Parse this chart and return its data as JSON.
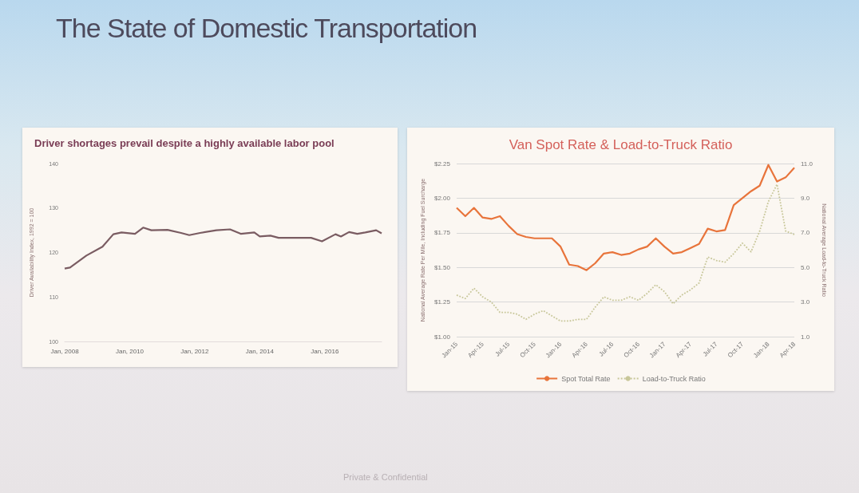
{
  "chart_data": [
    {
      "type": "line",
      "title": "The State of Domestic Transportation",
      "subtitle": "Driver shortages prevail despite a highly available labor pool",
      "ylabel": "Driver Availability Index, 1992 = 100",
      "annotations": [
        "Private & Confidential"
      ],
      "marker": "none",
      "grid": false,
      "x": [
        "2008-01",
        "2008-03",
        "2008-09",
        "2009-03",
        "2009-07",
        "2009-10",
        "2010-03",
        "2010-06",
        "2010-09",
        "2011-03",
        "2011-08",
        "2011-11",
        "2012-03",
        "2012-09",
        "2013-02",
        "2013-06",
        "2013-11",
        "2014-01",
        "2014-05",
        "2014-08",
        "2015-02",
        "2015-08",
        "2015-12",
        "2016-05",
        "2016-07",
        "2016-10",
        "2017-01",
        "2017-04",
        "2017-08",
        "2017-10"
      ],
      "series": [
        {
          "color": "#7a5c62",
          "values": [
            116.4,
            116.6,
            119.3,
            121.3,
            124.1,
            124.5,
            124.2,
            125.6,
            125,
            125.1,
            124.4,
            123.9,
            124.4,
            125,
            125.2,
            124.2,
            124.5,
            123.6,
            123.8,
            123.3,
            123.3,
            123.3,
            122.5,
            124.1,
            123.6,
            124.6,
            124.2,
            124.5,
            125,
            124.3
          ]
        }
      ],
      "xlim": [
        "2008-01",
        "2017-10"
      ],
      "xticks": [
        {
          "value": "2008-01",
          "label": "Jan, 2008"
        },
        {
          "value": "2010-01",
          "label": "Jan, 2010"
        },
        {
          "value": "2012-01",
          "label": "Jan, 2012"
        },
        {
          "value": "2014-01",
          "label": "Jan, 2014"
        },
        {
          "value": "2016-01",
          "label": "Jan, 2016"
        }
      ],
      "ylim": [
        100,
        140
      ],
      "yticks": [
        100,
        110,
        120,
        130,
        140
      ]
    },
    {
      "type": "line",
      "title": "Van Spot Rate & Load-to-Truck Ratio",
      "ylabel": "National Average Rate Per Mile, Including Fuel Surcharge",
      "y2label": "National Average Load-to-Truck Ratio",
      "marker": "none",
      "grid": "y",
      "legend": "bottom",
      "categories": [
        "Jan-15",
        null,
        null,
        "Apr-15",
        null,
        null,
        "Jul-15",
        null,
        null,
        "Oct-15",
        null,
        null,
        "Jan-16",
        null,
        null,
        "Apr-16",
        null,
        null,
        "Jul-16",
        null,
        null,
        "Oct-16",
        null,
        null,
        "Jan-17",
        null,
        null,
        "Apr-17",
        null,
        null,
        "Jul-17",
        null,
        null,
        "Oct-17",
        null,
        null,
        "Jan-18",
        null,
        null,
        "Apr-18"
      ],
      "series": [
        {
          "name": "Spot Total Rate",
          "color": "#e8743b",
          "line_style": "solid",
          "values": [
            1.93,
            1.87,
            1.93,
            1.86,
            1.85,
            1.87,
            1.8,
            1.74,
            1.72,
            1.71,
            1.71,
            1.71,
            1.65,
            1.52,
            1.51,
            1.48,
            1.53,
            1.6,
            1.61,
            1.59,
            1.6,
            1.63,
            1.65,
            1.71,
            1.65,
            1.6,
            1.61,
            1.64,
            1.67,
            1.78,
            1.76,
            1.77,
            1.95,
            2.0,
            2.05,
            2.09,
            2.24,
            2.12,
            2.15,
            2.22
          ]
        },
        {
          "name": "Load-to-Truck Ratio",
          "color": "#c8c79a",
          "line_style": "dotted",
          "axis": "y2",
          "values": [
            3.4,
            3.2,
            3.8,
            3.3,
            3.0,
            2.4,
            2.4,
            2.3,
            2.0,
            2.3,
            2.5,
            2.2,
            1.9,
            1.9,
            2.0,
            2.0,
            2.7,
            3.3,
            3.1,
            3.1,
            3.3,
            3.1,
            3.5,
            4.0,
            3.6,
            2.9,
            3.4,
            3.7,
            4.1,
            5.6,
            5.4,
            5.3,
            5.8,
            6.4,
            5.9,
            7.1,
            8.8,
            9.8,
            7.1,
            6.9
          ]
        }
      ],
      "ylim": [
        1,
        2.25
      ],
      "yticks": [
        {
          "value": 1,
          "label": "$1.00"
        },
        {
          "value": 1.25,
          "label": "$1.25"
        },
        {
          "value": 1.5,
          "label": "$1.50"
        },
        {
          "value": 1.75,
          "label": "$1.75"
        },
        {
          "value": 2,
          "label": "$2.00"
        },
        {
          "value": 2.25,
          "label": "$2.25"
        }
      ],
      "y2lim": [
        1,
        11
      ],
      "y2ticks": [
        {
          "value": 1,
          "label": "1.0"
        },
        {
          "value": 3,
          "label": "3.0"
        },
        {
          "value": 5,
          "label": "5.0"
        },
        {
          "value": 7,
          "label": "7.0"
        },
        {
          "value": 9,
          "label": "9.0"
        },
        {
          "value": 11,
          "label": "11.0"
        }
      ]
    }
  ]
}
